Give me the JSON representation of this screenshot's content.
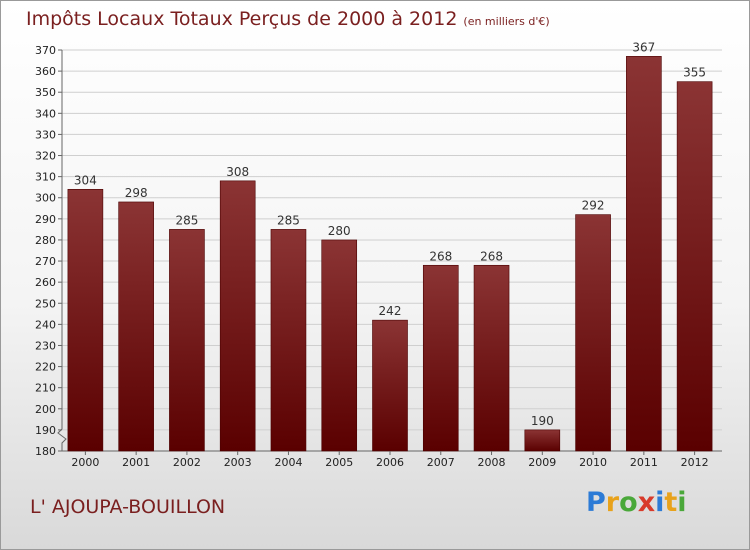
{
  "header": {
    "title": "Impôts Locaux Totaux Perçus de 2000 à 2012",
    "subtitle": "(en milliers d'€)"
  },
  "footer": {
    "commune": "L' AJOUPA-BOUILLON",
    "logo_letters": [
      "P",
      "r",
      "o",
      "x",
      "i",
      "t",
      "i"
    ],
    "logo_colors": [
      "#2c7bd6",
      "#e8a21b",
      "#4aa83a",
      "#d83a2a",
      "#2c7bd6",
      "#e8a21b",
      "#4aa83a"
    ]
  },
  "colors": {
    "bar_top": "#8b3434",
    "bar_bottom": "#5a0000",
    "title": "#7a1f1f"
  },
  "chart_data": {
    "type": "bar",
    "title": "Impôts Locaux Totaux Perçus de 2000 à 2012",
    "subtitle": "(en milliers d'€)",
    "categories": [
      "2000",
      "2001",
      "2002",
      "2003",
      "2004",
      "2005",
      "2006",
      "2007",
      "2008",
      "2009",
      "2010",
      "2011",
      "2012"
    ],
    "values": [
      304,
      298,
      285,
      308,
      285,
      280,
      242,
      268,
      268,
      190,
      292,
      367,
      355
    ],
    "ylim": [
      180,
      370
    ],
    "yticks": [
      180,
      190,
      200,
      210,
      220,
      230,
      240,
      250,
      260,
      270,
      280,
      290,
      300,
      310,
      320,
      330,
      340,
      350,
      360,
      370
    ],
    "grid": true,
    "legend": "none"
  }
}
